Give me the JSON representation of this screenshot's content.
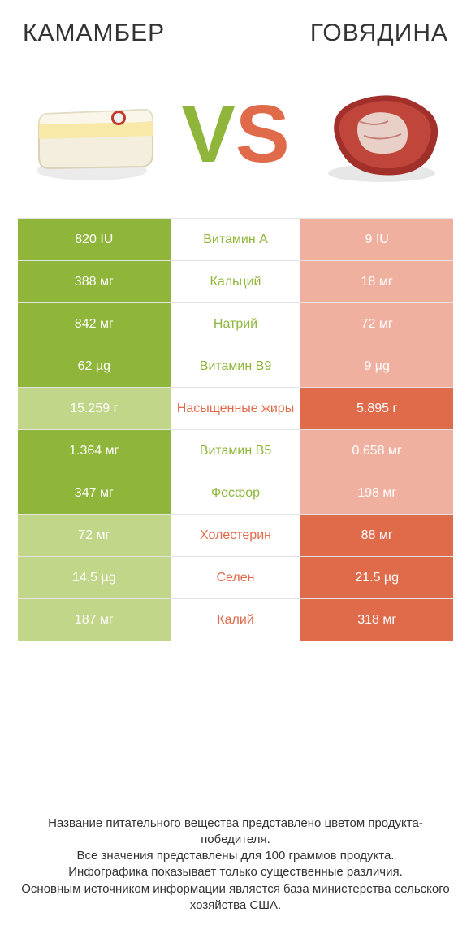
{
  "colors": {
    "green_strong": "#8fb63a",
    "green_light": "#c2d689",
    "orange_strong": "#e06b4b",
    "orange_light": "#f0b09f",
    "border": "#e3e3e3",
    "text": "#333333",
    "background": "#ffffff"
  },
  "header": {
    "left_title": "КАМАМБЕР",
    "right_title": "ГОВЯДИНА",
    "vs_v": "V",
    "vs_s": "S"
  },
  "rows": [
    {
      "nutrient": "Витамин A",
      "left": "820 IU",
      "right": "9 IU",
      "winner": "left"
    },
    {
      "nutrient": "Кальций",
      "left": "388 мг",
      "right": "18 мг",
      "winner": "left"
    },
    {
      "nutrient": "Натрий",
      "left": "842 мг",
      "right": "72 мг",
      "winner": "left"
    },
    {
      "nutrient": "Витамин B9",
      "left": "62 µg",
      "right": "9 µg",
      "winner": "left"
    },
    {
      "nutrient": "Насыщенные жиры",
      "left": "15.259 г",
      "right": "5.895 г",
      "winner": "right"
    },
    {
      "nutrient": "Витамин B5",
      "left": "1.364 мг",
      "right": "0.658 мг",
      "winner": "left"
    },
    {
      "nutrient": "Фосфор",
      "left": "347 мг",
      "right": "198 мг",
      "winner": "left"
    },
    {
      "nutrient": "Холестерин",
      "left": "72 мг",
      "right": "88 мг",
      "winner": "right"
    },
    {
      "nutrient": "Селен",
      "left": "14.5 µg",
      "right": "21.5 µg",
      "winner": "right"
    },
    {
      "nutrient": "Калий",
      "left": "187 мг",
      "right": "318 мг",
      "winner": "right"
    }
  ],
  "footer": {
    "line1": "Название питательного вещества представлено цветом продукта-победителя.",
    "line2": "Все значения представлены для 100 граммов продукта.",
    "line3": "Инфографика показывает только существенные различия.",
    "line4": "Основным источником информации является база министерства сельского хозяйства США."
  }
}
